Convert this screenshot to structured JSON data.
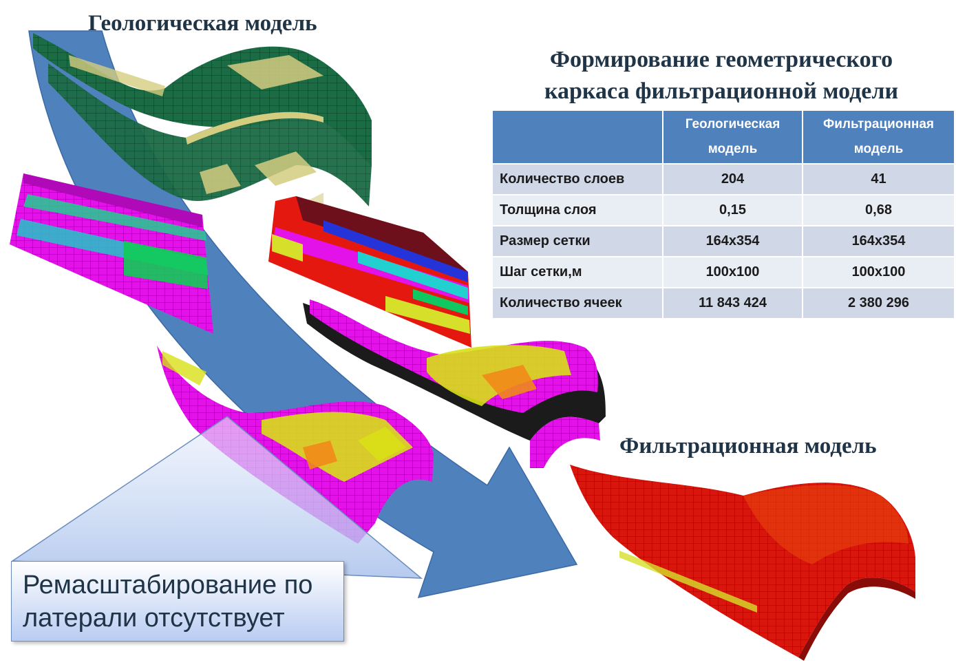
{
  "titles": {
    "geological_model": "Геологическая модель",
    "filtration_model": "Фильтрационная модель",
    "main_line1": "Формирование геометрического",
    "main_line2": "каркаса фильтрационной модели"
  },
  "table": {
    "headers": [
      "",
      "Геологическая модель",
      "Фильтрационная модель"
    ],
    "rows": [
      {
        "label": "Количество слоев",
        "geo": "204",
        "filt": "41"
      },
      {
        "label": "Толщина слоя",
        "geo": "0,15",
        "filt": "0,68"
      },
      {
        "label": "Размер сетки",
        "geo": "164x354",
        "filt": "164x354"
      },
      {
        "label": "Шаг сетки,м",
        "geo": "100x100",
        "filt": "100x100"
      },
      {
        "label": "Количество ячеек",
        "geo": "11 843 424",
        "filt": "2 380 296"
      }
    ]
  },
  "note": {
    "line1": "Ремасштабирование по",
    "line2": "латерали отсутствует"
  },
  "colors": {
    "arrow": "#4f81bd",
    "table_header": "#4f81bd",
    "geo_model": "#1b6b45",
    "geo_accent": "#d4cd80",
    "slice_magenta": "#e212e8",
    "filt_model": "#d8160e"
  }
}
